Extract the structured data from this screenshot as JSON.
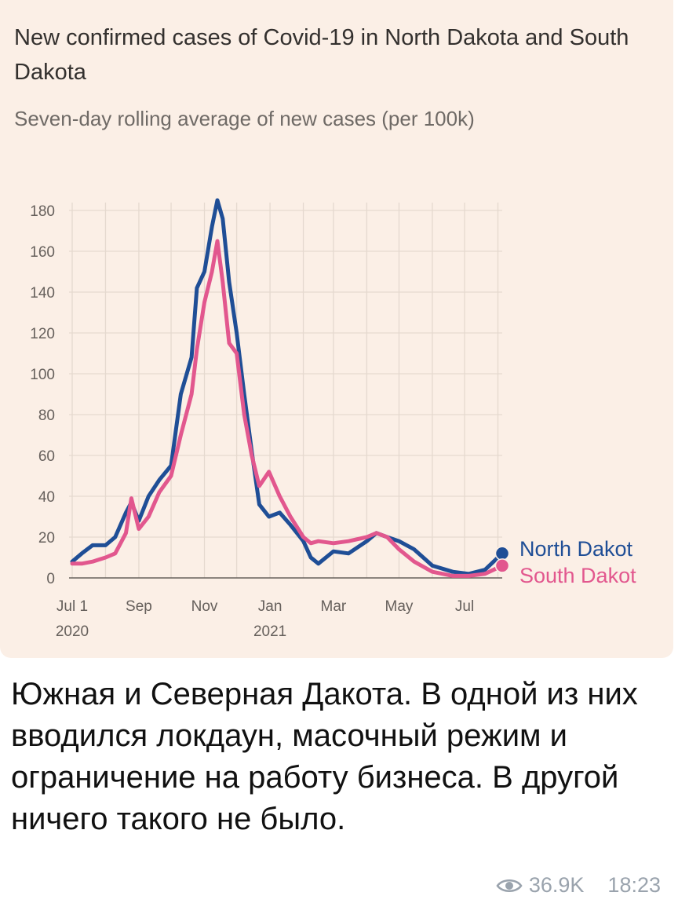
{
  "post": {
    "caption": "Южная и Северная Дакота. В одной из них вводился локдаун, масочный режим и ограничение на работу бизнеса. В другой ничего такого не было.",
    "views": "36.9K",
    "time": "18:23",
    "views_icon": "eye-icon"
  },
  "chart_data": {
    "type": "line",
    "title": "New confirmed cases of Covid-19 in North Dakota and South Dakota",
    "subtitle": "Seven-day rolling average of new cases (per 100k)",
    "xlabel": "",
    "ylabel": "",
    "ylim": [
      0,
      180
    ],
    "yticks": [
      0,
      20,
      40,
      60,
      80,
      100,
      120,
      140,
      160,
      180
    ],
    "x_range": [
      "2020-07-01",
      "2021-08-05"
    ],
    "xticks": [
      {
        "date": "2020-07-01",
        "label": "Jul 1",
        "sublabel": "2020"
      },
      {
        "date": "2020-09-01",
        "label": "Sep",
        "sublabel": ""
      },
      {
        "date": "2020-11-01",
        "label": "Nov",
        "sublabel": ""
      },
      {
        "date": "2021-01-01",
        "label": "Jan",
        "sublabel": "2021"
      },
      {
        "date": "2021-03-01",
        "label": "Mar",
        "sublabel": ""
      },
      {
        "date": "2021-05-01",
        "label": "May",
        "sublabel": ""
      },
      {
        "date": "2021-07-01",
        "label": "Jul",
        "sublabel": ""
      }
    ],
    "grid": true,
    "legend_position": "right-end",
    "series": [
      {
        "name": "North Dakot",
        "color": "#1f4e96",
        "points": [
          [
            "2020-07-01",
            8
          ],
          [
            "2020-07-10",
            12
          ],
          [
            "2020-07-20",
            16
          ],
          [
            "2020-08-01",
            16
          ],
          [
            "2020-08-10",
            20
          ],
          [
            "2020-08-20",
            32
          ],
          [
            "2020-08-25",
            37
          ],
          [
            "2020-09-01",
            28
          ],
          [
            "2020-09-10",
            40
          ],
          [
            "2020-09-20",
            48
          ],
          [
            "2020-10-01",
            55
          ],
          [
            "2020-10-10",
            90
          ],
          [
            "2020-10-20",
            108
          ],
          [
            "2020-10-25",
            142
          ],
          [
            "2020-11-01",
            150
          ],
          [
            "2020-11-08",
            172
          ],
          [
            "2020-11-13",
            185
          ],
          [
            "2020-11-18",
            176
          ],
          [
            "2020-11-24",
            145
          ],
          [
            "2020-12-01",
            120
          ],
          [
            "2020-12-08",
            90
          ],
          [
            "2020-12-15",
            62
          ],
          [
            "2020-12-22",
            36
          ],
          [
            "2020-12-31",
            30
          ],
          [
            "2021-01-10",
            32
          ],
          [
            "2021-01-20",
            26
          ],
          [
            "2021-02-01",
            18
          ],
          [
            "2021-02-08",
            10
          ],
          [
            "2021-02-15",
            7
          ],
          [
            "2021-03-01",
            13
          ],
          [
            "2021-03-15",
            12
          ],
          [
            "2021-04-01",
            18
          ],
          [
            "2021-04-10",
            22
          ],
          [
            "2021-04-20",
            20
          ],
          [
            "2021-05-01",
            18
          ],
          [
            "2021-05-15",
            14
          ],
          [
            "2021-06-01",
            6
          ],
          [
            "2021-06-20",
            3
          ],
          [
            "2021-07-05",
            2
          ],
          [
            "2021-07-20",
            4
          ],
          [
            "2021-08-05",
            12
          ]
        ]
      },
      {
        "name": "South Dakot",
        "color": "#e2578e",
        "points": [
          [
            "2020-07-01",
            7
          ],
          [
            "2020-07-10",
            7
          ],
          [
            "2020-07-20",
            8
          ],
          [
            "2020-08-01",
            10
          ],
          [
            "2020-08-10",
            12
          ],
          [
            "2020-08-20",
            22
          ],
          [
            "2020-08-25",
            39
          ],
          [
            "2020-09-01",
            24
          ],
          [
            "2020-09-10",
            30
          ],
          [
            "2020-09-20",
            42
          ],
          [
            "2020-10-01",
            50
          ],
          [
            "2020-10-10",
            70
          ],
          [
            "2020-10-20",
            90
          ],
          [
            "2020-10-25",
            112
          ],
          [
            "2020-11-01",
            135
          ],
          [
            "2020-11-08",
            150
          ],
          [
            "2020-11-13",
            165
          ],
          [
            "2020-11-18",
            145
          ],
          [
            "2020-11-24",
            115
          ],
          [
            "2020-12-01",
            110
          ],
          [
            "2020-12-08",
            80
          ],
          [
            "2020-12-15",
            60
          ],
          [
            "2020-12-22",
            45
          ],
          [
            "2020-12-31",
            52
          ],
          [
            "2021-01-10",
            40
          ],
          [
            "2021-01-20",
            30
          ],
          [
            "2021-02-01",
            20
          ],
          [
            "2021-02-08",
            17
          ],
          [
            "2021-02-15",
            18
          ],
          [
            "2021-03-01",
            17
          ],
          [
            "2021-03-15",
            18
          ],
          [
            "2021-04-01",
            20
          ],
          [
            "2021-04-10",
            22
          ],
          [
            "2021-04-20",
            20
          ],
          [
            "2021-05-01",
            14
          ],
          [
            "2021-05-15",
            8
          ],
          [
            "2021-06-01",
            3
          ],
          [
            "2021-06-20",
            1
          ],
          [
            "2021-07-05",
            1
          ],
          [
            "2021-07-20",
            2
          ],
          [
            "2021-08-05",
            6
          ]
        ]
      }
    ]
  }
}
